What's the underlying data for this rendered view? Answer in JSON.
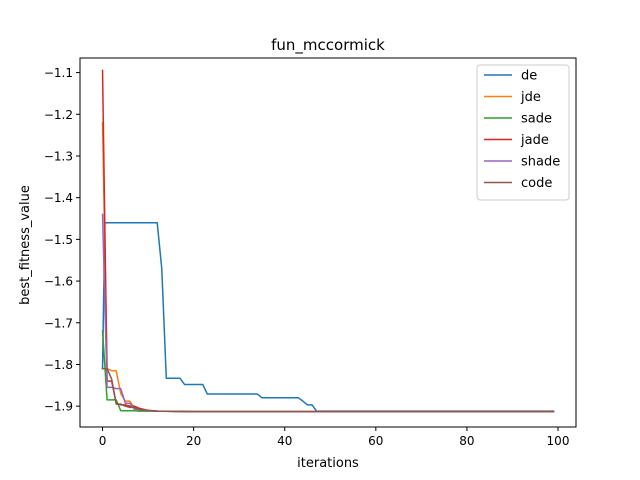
{
  "chart_data": {
    "type": "line",
    "title": "fun_mccormick",
    "xlabel": "iterations",
    "ylabel": "best_fitness_value",
    "xlim": [
      -4.95,
      103.95
    ],
    "ylim": [
      -1.95,
      -1.065
    ],
    "xticks": [
      0,
      20,
      40,
      60,
      80,
      100
    ],
    "xtick_labels": [
      "0",
      "20",
      "40",
      "60",
      "80",
      "100"
    ],
    "yticks": [
      -1.9,
      -1.8,
      -1.7,
      -1.6,
      -1.5,
      -1.4,
      -1.3,
      -1.2,
      -1.1
    ],
    "ytick_labels": [
      "−1.9",
      "−1.8",
      "−1.7",
      "−1.6",
      "−1.5",
      "−1.4",
      "−1.3",
      "−1.2",
      "−1.1"
    ],
    "grid": false,
    "legend_position": "top-right",
    "series": [
      {
        "name": "de",
        "color": "#1f77b4",
        "x": [
          0,
          0.5,
          1,
          12,
          13,
          14,
          17,
          18,
          22,
          23,
          34,
          35,
          43,
          44,
          45,
          46,
          47,
          99
        ],
        "y": [
          -1.81,
          -1.46,
          -1.46,
          -1.46,
          -1.57,
          -1.833,
          -1.833,
          -1.848,
          -1.848,
          -1.871,
          -1.871,
          -1.88,
          -1.88,
          -1.888,
          -1.897,
          -1.897,
          -1.912,
          -1.912
        ]
      },
      {
        "name": "jde",
        "color": "#ff7f0e",
        "x": [
          0,
          1,
          2,
          3,
          4,
          5,
          6,
          7,
          8,
          9,
          12,
          20,
          99
        ],
        "y": [
          -1.22,
          -1.81,
          -1.815,
          -1.815,
          -1.87,
          -1.888,
          -1.888,
          -1.905,
          -1.905,
          -1.911,
          -1.912,
          -1.913,
          -1.913
        ]
      },
      {
        "name": "sade",
        "color": "#2ca02c",
        "x": [
          0,
          1,
          3,
          4,
          5,
          7,
          8,
          10,
          20,
          99
        ],
        "y": [
          -1.72,
          -1.885,
          -1.885,
          -1.911,
          -1.911,
          -1.911,
          -1.912,
          -1.912,
          -1.913,
          -1.913
        ]
      },
      {
        "name": "jade",
        "color": "#d62728",
        "x": [
          0,
          1,
          2,
          3,
          4,
          5,
          6,
          7,
          8,
          10,
          12,
          20,
          99
        ],
        "y": [
          -1.095,
          -1.84,
          -1.84,
          -1.893,
          -1.897,
          -1.897,
          -1.9,
          -1.9,
          -1.905,
          -1.91,
          -1.912,
          -1.913,
          -1.913
        ]
      },
      {
        "name": "shade",
        "color": "#9467bd",
        "x": [
          0,
          1,
          2,
          3,
          4,
          5,
          6,
          7,
          8,
          10,
          12,
          20,
          99
        ],
        "y": [
          -1.44,
          -1.855,
          -1.855,
          -1.858,
          -1.858,
          -1.893,
          -1.893,
          -1.908,
          -1.908,
          -1.911,
          -1.912,
          -1.913,
          -1.913
        ]
      },
      {
        "name": "code",
        "color": "#8c564b",
        "x": [
          0,
          1,
          2,
          3,
          4,
          5,
          6,
          7,
          8,
          10,
          12,
          20,
          99
        ],
        "y": [
          -1.81,
          -1.81,
          -1.835,
          -1.895,
          -1.895,
          -1.9,
          -1.903,
          -1.903,
          -1.908,
          -1.91,
          -1.912,
          -1.913,
          -1.913
        ]
      }
    ]
  }
}
